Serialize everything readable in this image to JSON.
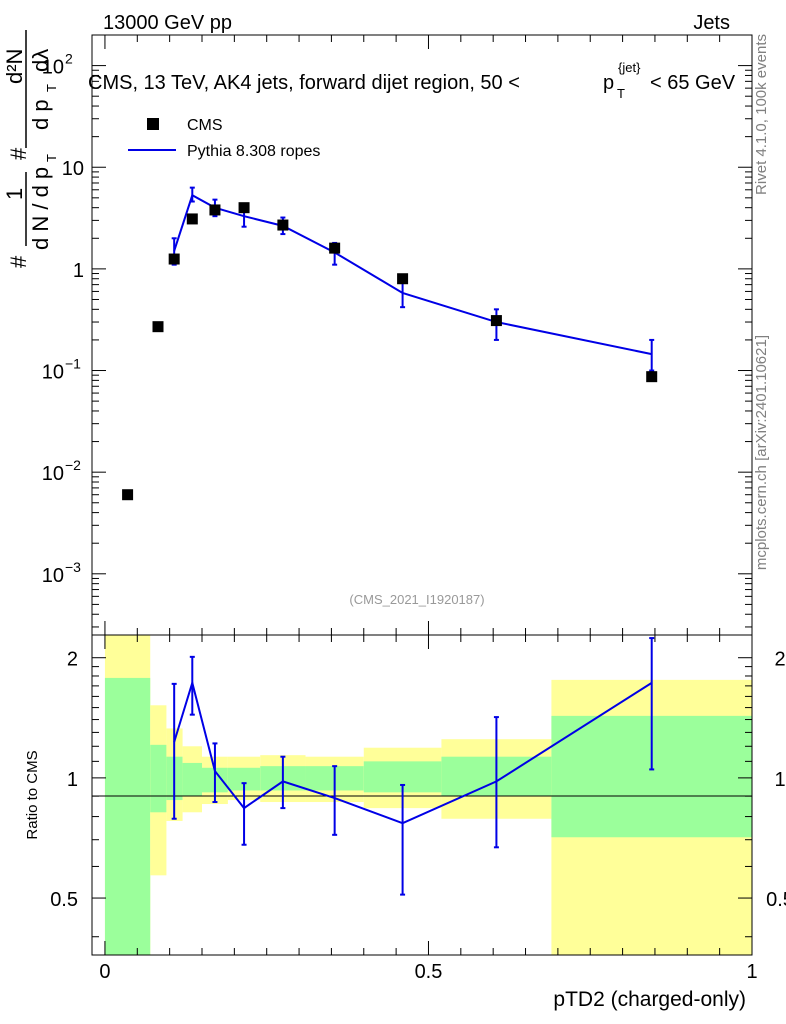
{
  "header": {
    "energy_label": "13000 GeV pp",
    "category_label": "Jets",
    "title_prefix": "CMS, 13 TeV, AK4 jets, forward dijet region, 50 <",
    "title_p": "p",
    "title_sub": "T",
    "title_sup": "{jet}",
    "title_suffix": "< 65 GeV",
    "analysis_id": "(CMS_2021_I1920187)"
  },
  "side": {
    "rivet": "Rivet 4.1.0,  100k events",
    "mcplots": "mcplots.cern.ch [arXiv:2401.10621]"
  },
  "axes": {
    "ylabel_main": {
      "hash": "#",
      "one": "1",
      "dN": "d N / d p",
      "T": "T",
      "frac_top": "d²N",
      "frac_bot": "d p",
      "lambda": "dλ"
    },
    "ylabel_ratio": "Ratio to CMS",
    "xlabel": "pTD2 (charged-only)",
    "main_yticks": [
      {
        "base": "10",
        "exp": "2",
        "value": 100
      },
      {
        "base": "10",
        "exp": "",
        "value": 10
      },
      {
        "base": "1",
        "exp": "",
        "value": 1
      },
      {
        "base": "10",
        "exp": "−1",
        "value": 0.1
      },
      {
        "base": "10",
        "exp": "−2",
        "value": 0.01
      },
      {
        "base": "10",
        "exp": "−3",
        "value": 0.001
      }
    ],
    "ratio_yticks": [
      "2",
      "1",
      "0.5"
    ],
    "xticks": [
      "0",
      "0.5",
      "1"
    ]
  },
  "legend": {
    "cms": "CMS",
    "pythia": "Pythia 8.308 ropes"
  },
  "colors": {
    "mc": "#0000e6",
    "band_inner": "#9bff9b",
    "band_outer": "#ffff99",
    "data": "#000000"
  },
  "chart_data": {
    "type": "scatter",
    "title": "CMS, 13 TeV, AK4 jets, forward dijet region, 50 < pT{jet} < 65 GeV",
    "xlabel": "pTD2 (charged-only)",
    "xlim": [
      -0.02,
      1.0
    ],
    "ylim_main": [
      0.00025,
      200
    ],
    "ylim_ratio": [
      0.36,
      2.28
    ],
    "data_points": [
      {
        "x": 0.035,
        "y": 0.006
      },
      {
        "x": 0.082,
        "y": 0.27
      },
      {
        "x": 0.107,
        "y": 1.25
      },
      {
        "x": 0.135,
        "y": 3.1
      },
      {
        "x": 0.17,
        "y": 3.8
      },
      {
        "x": 0.215,
        "y": 4.0
      },
      {
        "x": 0.275,
        "y": 2.7
      },
      {
        "x": 0.355,
        "y": 1.6
      },
      {
        "x": 0.46,
        "y": 0.8
      },
      {
        "x": 0.605,
        "y": 0.31
      },
      {
        "x": 0.845,
        "y": 0.087
      }
    ],
    "mc_points": [
      {
        "x": 0.107,
        "y": 1.5,
        "lo": 1.1,
        "hi": 2.0
      },
      {
        "x": 0.135,
        "y": 5.3,
        "lo": 4.6,
        "hi": 6.3
      },
      {
        "x": 0.17,
        "y": 4.0,
        "lo": 3.3,
        "hi": 4.8
      },
      {
        "x": 0.215,
        "y": 3.3,
        "lo": 2.6,
        "hi": 4.1
      },
      {
        "x": 0.275,
        "y": 2.65,
        "lo": 2.2,
        "hi": 3.2
      },
      {
        "x": 0.355,
        "y": 1.45,
        "lo": 1.1,
        "hi": 1.8
      },
      {
        "x": 0.46,
        "y": 0.58,
        "lo": 0.42,
        "hi": 0.75
      },
      {
        "x": 0.605,
        "y": 0.3,
        "lo": 0.2,
        "hi": 0.4
      },
      {
        "x": 0.845,
        "y": 0.145,
        "lo": 0.1,
        "hi": 0.2
      }
    ],
    "ratio_mc": [
      {
        "x": 0.107,
        "y": 1.23,
        "lo": 0.79,
        "hi": 1.72
      },
      {
        "x": 0.135,
        "y": 1.73,
        "lo": 1.44,
        "hi": 2.01
      },
      {
        "x": 0.17,
        "y": 1.04,
        "lo": 0.87,
        "hi": 1.22
      },
      {
        "x": 0.215,
        "y": 0.84,
        "lo": 0.68,
        "hi": 0.97
      },
      {
        "x": 0.275,
        "y": 0.98,
        "lo": 0.84,
        "hi": 1.13
      },
      {
        "x": 0.355,
        "y": 0.89,
        "lo": 0.72,
        "hi": 1.07
      },
      {
        "x": 0.46,
        "y": 0.77,
        "lo": 0.51,
        "hi": 0.96
      },
      {
        "x": 0.605,
        "y": 0.98,
        "lo": 0.67,
        "hi": 1.42
      },
      {
        "x": 0.845,
        "y": 1.73,
        "lo": 1.05,
        "hi": 2.24
      }
    ],
    "bands": [
      {
        "x0": 0.0,
        "x1": 0.07,
        "in_lo": 0.36,
        "in_hi": 1.78,
        "out_lo": 0.36,
        "out_hi": 2.28
      },
      {
        "x0": 0.07,
        "x1": 0.095,
        "in_lo": 0.82,
        "in_hi": 1.21,
        "out_lo": 0.57,
        "out_hi": 1.52
      },
      {
        "x0": 0.095,
        "x1": 0.12,
        "in_lo": 0.88,
        "in_hi": 1.13,
        "out_lo": 0.78,
        "out_hi": 1.33
      },
      {
        "x0": 0.12,
        "x1": 0.15,
        "in_lo": 0.9,
        "in_hi": 1.09,
        "out_lo": 0.82,
        "out_hi": 1.2
      },
      {
        "x0": 0.15,
        "x1": 0.19,
        "in_lo": 0.92,
        "in_hi": 1.06,
        "out_lo": 0.86,
        "out_hi": 1.13
      },
      {
        "x0": 0.19,
        "x1": 0.24,
        "in_lo": 0.93,
        "in_hi": 1.06,
        "out_lo": 0.88,
        "out_hi": 1.13
      },
      {
        "x0": 0.24,
        "x1": 0.31,
        "in_lo": 0.93,
        "in_hi": 1.07,
        "out_lo": 0.87,
        "out_hi": 1.14
      },
      {
        "x0": 0.31,
        "x1": 0.4,
        "in_lo": 0.93,
        "in_hi": 1.07,
        "out_lo": 0.87,
        "out_hi": 1.13
      },
      {
        "x0": 0.4,
        "x1": 0.52,
        "in_lo": 0.92,
        "in_hi": 1.1,
        "out_lo": 0.84,
        "out_hi": 1.19
      },
      {
        "x0": 0.52,
        "x1": 0.69,
        "in_lo": 0.9,
        "in_hi": 1.13,
        "out_lo": 0.79,
        "out_hi": 1.25
      },
      {
        "x0": 0.69,
        "x1": 1.0,
        "in_lo": 0.71,
        "in_hi": 1.43,
        "out_lo": 0.36,
        "out_hi": 1.76
      }
    ]
  }
}
